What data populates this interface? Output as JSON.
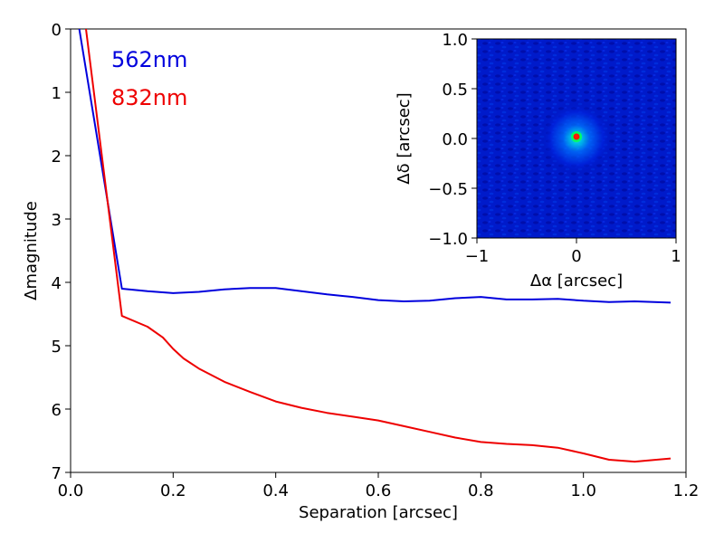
{
  "chart_data": [
    {
      "type": "line",
      "xlabel": "Separation [arcsec]",
      "ylabel": "Δmagnitude",
      "xlim": [
        0.0,
        1.2
      ],
      "ylim": [
        7,
        0
      ],
      "y_inverted": true,
      "grid": false,
      "legend_placement": "top-left",
      "x_ticks": [
        "0.0",
        "0.2",
        "0.4",
        "0.6",
        "0.8",
        "1.0",
        "1.2"
      ],
      "y_ticks": [
        "0",
        "1",
        "2",
        "3",
        "4",
        "5",
        "6",
        "7"
      ],
      "series": [
        {
          "name": "562nm",
          "color": "#0000dd",
          "points": [
            [
              0.017,
              0.0
            ],
            [
              0.1,
              4.1
            ],
            [
              0.15,
              4.14
            ],
            [
              0.2,
              4.17
            ],
            [
              0.25,
              4.15
            ],
            [
              0.3,
              4.11
            ],
            [
              0.35,
              4.09
            ],
            [
              0.4,
              4.09
            ],
            [
              0.45,
              4.14
            ],
            [
              0.5,
              4.19
            ],
            [
              0.55,
              4.23
            ],
            [
              0.6,
              4.28
            ],
            [
              0.65,
              4.3
            ],
            [
              0.7,
              4.29
            ],
            [
              0.75,
              4.25
            ],
            [
              0.8,
              4.23
            ],
            [
              0.85,
              4.27
            ],
            [
              0.9,
              4.27
            ],
            [
              0.95,
              4.26
            ],
            [
              1.0,
              4.29
            ],
            [
              1.05,
              4.31
            ],
            [
              1.1,
              4.3
            ],
            [
              1.17,
              4.32
            ]
          ]
        },
        {
          "name": "832nm",
          "color": "#ee0000",
          "points": [
            [
              0.03,
              0.0
            ],
            [
              0.1,
              4.53
            ],
            [
              0.15,
              4.7
            ],
            [
              0.18,
              4.87
            ],
            [
              0.2,
              5.05
            ],
            [
              0.22,
              5.2
            ],
            [
              0.25,
              5.36
            ],
            [
              0.3,
              5.57
            ],
            [
              0.35,
              5.73
            ],
            [
              0.4,
              5.88
            ],
            [
              0.45,
              5.98
            ],
            [
              0.5,
              6.06
            ],
            [
              0.55,
              6.12
            ],
            [
              0.6,
              6.18
            ],
            [
              0.65,
              6.27
            ],
            [
              0.7,
              6.36
            ],
            [
              0.75,
              6.45
            ],
            [
              0.8,
              6.52
            ],
            [
              0.85,
              6.55
            ],
            [
              0.9,
              6.57
            ],
            [
              0.95,
              6.61
            ],
            [
              1.0,
              6.7
            ],
            [
              1.05,
              6.8
            ],
            [
              1.1,
              6.83
            ],
            [
              1.17,
              6.78
            ]
          ]
        }
      ]
    },
    {
      "type": "heatmap",
      "xlabel": "Δα [arcsec]",
      "ylabel": "Δδ [arcsec]",
      "xlim": [
        -1,
        1
      ],
      "ylim": [
        -1.0,
        1.0
      ],
      "x_ticks": [
        "−1",
        "0",
        "1"
      ],
      "y_ticks": [
        "1.0",
        "0.5",
        "0.0",
        "−0.5",
        "−1.0"
      ],
      "colormap": "jet",
      "peak_position": [
        0.0,
        0.0
      ]
    }
  ]
}
